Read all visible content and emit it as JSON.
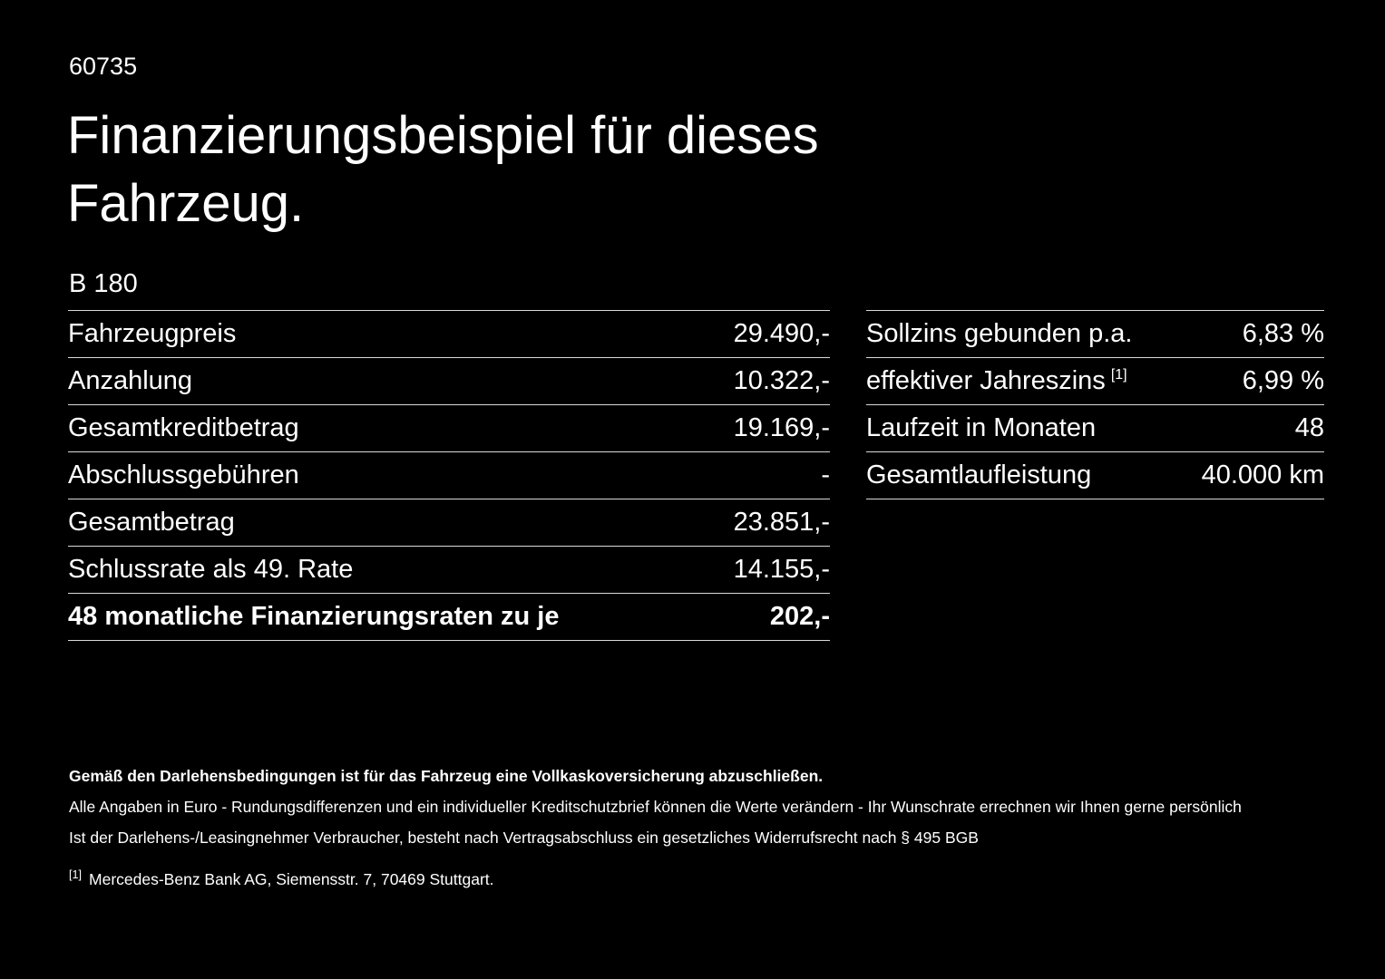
{
  "page": {
    "ref_number": "60735",
    "title": "Finanzierungsbeispiel für dieses Fahrzeug.",
    "model": "B 180"
  },
  "left_table": {
    "rows": [
      {
        "label": "Fahrzeugpreis",
        "value": "29.490,-"
      },
      {
        "label": "Anzahlung",
        "value": "10.322,-"
      },
      {
        "label": "Gesamtkreditbetrag",
        "value": "19.169,-"
      },
      {
        "label": "Abschlussgebühren",
        "value": "-"
      },
      {
        "label": "Gesamtbetrag",
        "value": "23.851,-"
      },
      {
        "label": "Schlussrate als 49. Rate",
        "value": "14.155,-"
      },
      {
        "label": "48 monatliche Finanzierungsraten zu je",
        "value": "202,-"
      }
    ]
  },
  "right_table": {
    "rows": [
      {
        "label": "Sollzins gebunden p.a.",
        "value": "6,83 %"
      },
      {
        "label": "effektiver Jahreszins",
        "sup": "[1]",
        "value": "6,99 %"
      },
      {
        "label": "Laufzeit in Monaten",
        "value": "48"
      },
      {
        "label": "Gesamtlaufleistung",
        "value": "40.000 km"
      }
    ]
  },
  "footer": {
    "line1": "Gemäß den Darlehensbedingungen ist für das Fahrzeug eine Vollkaskoversicherung abzuschließen.",
    "line2": "Alle Angaben in Euro - Rundungsdifferenzen und ein individueller Kreditschutzbrief können die Werte verändern - Ihr Wunschrate errechnen wir Ihnen gerne persönlich",
    "line3": "Ist der Darlehens-/Leasingnehmer Verbraucher, besteht nach Vertragsabschluss ein gesetzliches Widerrufsrecht nach § 495 BGB",
    "footnote_marker": "[1]",
    "footnote_text": "Mercedes-Benz Bank AG, Siemensstr. 7, 70469 Stuttgart."
  },
  "colors": {
    "background": "#000000",
    "text": "#ffffff",
    "divider": "#d9d9d9"
  }
}
